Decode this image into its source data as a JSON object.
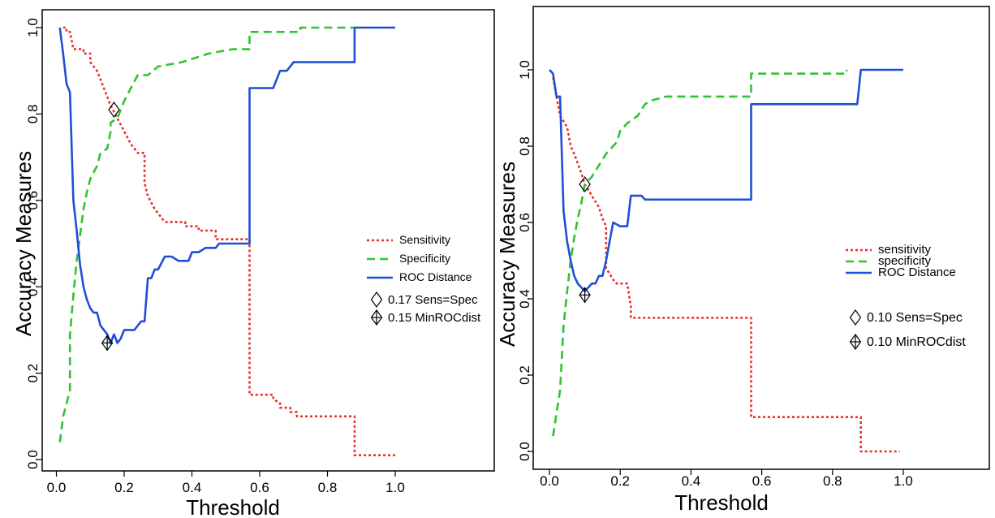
{
  "colors": {
    "sensitivity": "#e8302a",
    "specificity": "#2fc42f",
    "roc": "#1f4fd6"
  },
  "chart_data": [
    {
      "type": "line",
      "xlabel": "Threshold",
      "ylabel": "Accuracy Measures",
      "xlim": [
        0,
        1.2
      ],
      "ylim": [
        -0.05,
        1.05
      ],
      "xticks": [
        "0.0",
        "0.2",
        "0.4",
        "0.6",
        "0.8",
        "1.0"
      ],
      "yticks": [
        "0.0",
        "0.2",
        "0.4",
        "0.6",
        "0.8",
        "1.0"
      ],
      "series": [
        {
          "name": "Sensitivity",
          "style": "dotted",
          "color": "#e8302a",
          "points": [
            [
              0.02,
              1.0
            ],
            [
              0.03,
              1.0
            ],
            [
              0.03,
              0.99
            ],
            [
              0.04,
              0.99
            ],
            [
              0.05,
              0.95
            ],
            [
              0.08,
              0.95
            ],
            [
              0.08,
              0.94
            ],
            [
              0.1,
              0.94
            ],
            [
              0.1,
              0.92
            ],
            [
              0.12,
              0.9
            ],
            [
              0.14,
              0.86
            ],
            [
              0.16,
              0.82
            ],
            [
              0.18,
              0.79
            ],
            [
              0.2,
              0.76
            ],
            [
              0.22,
              0.73
            ],
            [
              0.24,
              0.71
            ],
            [
              0.26,
              0.71
            ],
            [
              0.26,
              0.64
            ],
            [
              0.27,
              0.61
            ],
            [
              0.29,
              0.58
            ],
            [
              0.31,
              0.56
            ],
            [
              0.32,
              0.55
            ],
            [
              0.38,
              0.55
            ],
            [
              0.38,
              0.54
            ],
            [
              0.42,
              0.54
            ],
            [
              0.42,
              0.53
            ],
            [
              0.47,
              0.53
            ],
            [
              0.47,
              0.51
            ],
            [
              0.57,
              0.51
            ],
            [
              0.57,
              0.15
            ],
            [
              0.64,
              0.15
            ],
            [
              0.64,
              0.14
            ],
            [
              0.66,
              0.13
            ],
            [
              0.66,
              0.12
            ],
            [
              0.69,
              0.12
            ],
            [
              0.69,
              0.11
            ],
            [
              0.71,
              0.11
            ],
            [
              0.71,
              0.1
            ],
            [
              0.88,
              0.1
            ],
            [
              0.88,
              0.01
            ],
            [
              1.0,
              0.01
            ]
          ]
        },
        {
          "name": "Specificity",
          "style": "dashed",
          "color": "#2fc42f",
          "points": [
            [
              0.01,
              0.04
            ],
            [
              0.02,
              0.1
            ],
            [
              0.03,
              0.13
            ],
            [
              0.04,
              0.16
            ],
            [
              0.04,
              0.29
            ],
            [
              0.05,
              0.38
            ],
            [
              0.06,
              0.46
            ],
            [
              0.07,
              0.52
            ],
            [
              0.08,
              0.58
            ],
            [
              0.09,
              0.62
            ],
            [
              0.1,
              0.65
            ],
            [
              0.12,
              0.68
            ],
            [
              0.13,
              0.71
            ],
            [
              0.15,
              0.72
            ],
            [
              0.16,
              0.76
            ],
            [
              0.16,
              0.78
            ],
            [
              0.18,
              0.79
            ],
            [
              0.2,
              0.83
            ],
            [
              0.22,
              0.86
            ],
            [
              0.24,
              0.89
            ],
            [
              0.27,
              0.89
            ],
            [
              0.3,
              0.91
            ],
            [
              0.37,
              0.92
            ],
            [
              0.45,
              0.94
            ],
            [
              0.52,
              0.95
            ],
            [
              0.57,
              0.95
            ],
            [
              0.57,
              0.99
            ],
            [
              0.72,
              0.99
            ],
            [
              0.72,
              1.0
            ],
            [
              0.88,
              1.0
            ]
          ]
        },
        {
          "name": "ROC Distance",
          "style": "solid",
          "color": "#1f4fd6",
          "points": [
            [
              0.01,
              1.0
            ],
            [
              0.02,
              0.94
            ],
            [
              0.03,
              0.87
            ],
            [
              0.04,
              0.85
            ],
            [
              0.05,
              0.6
            ],
            [
              0.06,
              0.53
            ],
            [
              0.07,
              0.45
            ],
            [
              0.08,
              0.4
            ],
            [
              0.09,
              0.37
            ],
            [
              0.1,
              0.35
            ],
            [
              0.11,
              0.34
            ],
            [
              0.12,
              0.34
            ],
            [
              0.13,
              0.31
            ],
            [
              0.14,
              0.3
            ],
            [
              0.15,
              0.29
            ],
            [
              0.16,
              0.27
            ],
            [
              0.17,
              0.29
            ],
            [
              0.18,
              0.27
            ],
            [
              0.19,
              0.28
            ],
            [
              0.2,
              0.3
            ],
            [
              0.23,
              0.3
            ],
            [
              0.24,
              0.31
            ],
            [
              0.25,
              0.32
            ],
            [
              0.26,
              0.32
            ],
            [
              0.27,
              0.42
            ],
            [
              0.28,
              0.42
            ],
            [
              0.29,
              0.44
            ],
            [
              0.3,
              0.44
            ],
            [
              0.32,
              0.47
            ],
            [
              0.34,
              0.47
            ],
            [
              0.36,
              0.46
            ],
            [
              0.39,
              0.46
            ],
            [
              0.4,
              0.48
            ],
            [
              0.42,
              0.48
            ],
            [
              0.44,
              0.49
            ],
            [
              0.47,
              0.49
            ],
            [
              0.48,
              0.5
            ],
            [
              0.57,
              0.5
            ],
            [
              0.57,
              0.86
            ],
            [
              0.64,
              0.86
            ],
            [
              0.66,
              0.9
            ],
            [
              0.68,
              0.9
            ],
            [
              0.7,
              0.92
            ],
            [
              0.88,
              0.92
            ],
            [
              0.88,
              1.0
            ],
            [
              1.0,
              1.0
            ]
          ]
        }
      ],
      "markers": [
        {
          "symbol": "diamond",
          "x": 0.17,
          "y": 0.81,
          "value_label": "0.17",
          "label": "Sens=Spec"
        },
        {
          "symbol": "diamond-plus",
          "x": 0.15,
          "y": 0.27,
          "value_label": "0.15",
          "label": "MinROCdist"
        }
      ],
      "legend_position": "right"
    },
    {
      "type": "line",
      "xlabel": "Threshold",
      "ylabel": "Accuracy Measures",
      "xlim": [
        -0.02,
        1.5
      ],
      "ylim": [
        -0.05,
        1.2
      ],
      "xticks": [
        "0.0",
        "0.2",
        "0.4",
        "0.6",
        "0.8",
        "1.0"
      ],
      "yticks": [
        "0.0",
        "0.2",
        "0.4",
        "0.6",
        "0.8",
        "1.0"
      ],
      "series": [
        {
          "name": "sensitivity",
          "style": "dotted",
          "color": "#e8302a",
          "points": [
            [
              0.01,
              0.98
            ],
            [
              0.02,
              0.93
            ],
            [
              0.03,
              0.88
            ],
            [
              0.05,
              0.85
            ],
            [
              0.06,
              0.8
            ],
            [
              0.07,
              0.78
            ],
            [
              0.09,
              0.73
            ],
            [
              0.1,
              0.7
            ],
            [
              0.12,
              0.67
            ],
            [
              0.14,
              0.64
            ],
            [
              0.15,
              0.61
            ],
            [
              0.16,
              0.59
            ],
            [
              0.16,
              0.48
            ],
            [
              0.18,
              0.45
            ],
            [
              0.19,
              0.44
            ],
            [
              0.2,
              0.44
            ],
            [
              0.22,
              0.44
            ],
            [
              0.23,
              0.38
            ],
            [
              0.23,
              0.35
            ],
            [
              0.57,
              0.35
            ],
            [
              0.57,
              0.09
            ],
            [
              0.88,
              0.09
            ],
            [
              0.88,
              0.0
            ],
            [
              0.99,
              0.0
            ]
          ]
        },
        {
          "name": "specificity",
          "style": "dashed",
          "color": "#2fc42f",
          "points": [
            [
              0.01,
              0.04
            ],
            [
              0.02,
              0.1
            ],
            [
              0.03,
              0.16
            ],
            [
              0.04,
              0.33
            ],
            [
              0.05,
              0.42
            ],
            [
              0.06,
              0.5
            ],
            [
              0.07,
              0.56
            ],
            [
              0.08,
              0.61
            ],
            [
              0.09,
              0.65
            ],
            [
              0.1,
              0.7
            ],
            [
              0.12,
              0.72
            ],
            [
              0.14,
              0.75
            ],
            [
              0.16,
              0.78
            ],
            [
              0.19,
              0.81
            ],
            [
              0.2,
              0.84
            ],
            [
              0.22,
              0.86
            ],
            [
              0.25,
              0.88
            ],
            [
              0.27,
              0.91
            ],
            [
              0.29,
              0.92
            ],
            [
              0.33,
              0.93
            ],
            [
              0.57,
              0.93
            ],
            [
              0.57,
              0.99
            ],
            [
              0.84,
              0.99
            ],
            [
              0.84,
              1.0
            ]
          ]
        },
        {
          "name": "ROC Distance",
          "style": "solid",
          "color": "#1f4fd6",
          "points": [
            [
              0.0,
              1.0
            ],
            [
              0.01,
              0.99
            ],
            [
              0.02,
              0.93
            ],
            [
              0.03,
              0.93
            ],
            [
              0.04,
              0.63
            ],
            [
              0.05,
              0.55
            ],
            [
              0.06,
              0.5
            ],
            [
              0.07,
              0.46
            ],
            [
              0.08,
              0.44
            ],
            [
              0.1,
              0.42
            ],
            [
              0.12,
              0.44
            ],
            [
              0.13,
              0.44
            ],
            [
              0.14,
              0.46
            ],
            [
              0.15,
              0.46
            ],
            [
              0.16,
              0.5
            ],
            [
              0.18,
              0.6
            ],
            [
              0.2,
              0.59
            ],
            [
              0.22,
              0.59
            ],
            [
              0.23,
              0.67
            ],
            [
              0.26,
              0.67
            ],
            [
              0.27,
              0.66
            ],
            [
              0.33,
              0.66
            ],
            [
              0.57,
              0.66
            ],
            [
              0.57,
              0.91
            ],
            [
              0.87,
              0.91
            ],
            [
              0.88,
              1.0
            ],
            [
              1.0,
              1.0
            ]
          ]
        }
      ],
      "markers": [
        {
          "symbol": "diamond",
          "x": 0.1,
          "y": 0.7,
          "value_label": "0.10",
          "label": "Sens=Spec"
        },
        {
          "symbol": "diamond-plus",
          "x": 0.1,
          "y": 0.41,
          "value_label": "0.10",
          "label": "MinROCdist"
        }
      ],
      "legend_position": "right"
    }
  ]
}
